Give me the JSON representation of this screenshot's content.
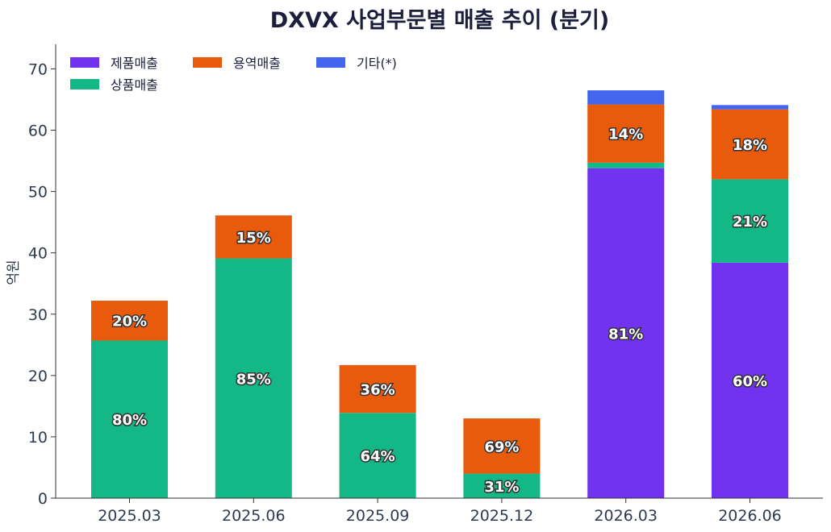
{
  "chart_data": {
    "type": "bar",
    "stacked": true,
    "title": "DXVX 사업부문별 매출 추이 (분기)",
    "ylabel": "억원",
    "xlabel": "",
    "ylim": [
      0,
      74
    ],
    "yticks": [
      0,
      10,
      20,
      30,
      40,
      50,
      60,
      70
    ],
    "grid": false,
    "legend_position": "top-left",
    "categories": [
      "2025.03",
      "2025.06",
      "2025.09",
      "2025.12",
      "2026.03",
      "2026.06"
    ],
    "series": [
      {
        "name": "제품매출",
        "color": "#7233f0",
        "values": [
          0,
          0,
          0,
          0,
          53.8,
          38.4
        ],
        "labels": [
          "",
          "",
          "",
          "",
          "81%",
          "60%"
        ]
      },
      {
        "name": "상품매출",
        "color": "#13b886",
        "values": [
          25.7,
          39.1,
          13.9,
          4.0,
          0.9,
          13.6
        ],
        "labels": [
          "80%",
          "85%",
          "64%",
          "31%",
          "",
          "21%"
        ]
      },
      {
        "name": "용역매출",
        "color": "#e85a0c",
        "values": [
          6.5,
          7.0,
          7.8,
          9.0,
          9.5,
          11.4
        ],
        "labels": [
          "20%",
          "15%",
          "36%",
          "69%",
          "14%",
          "18%"
        ]
      },
      {
        "name": "기타(*)",
        "color": "#4466ee",
        "values": [
          0,
          0,
          0,
          0,
          2.3,
          0.7
        ],
        "labels": [
          "",
          "",
          "",
          "",
          "",
          ""
        ]
      }
    ],
    "legend_order": [
      "제품매출",
      "용역매출",
      "기타(*)",
      "상품매출"
    ]
  }
}
